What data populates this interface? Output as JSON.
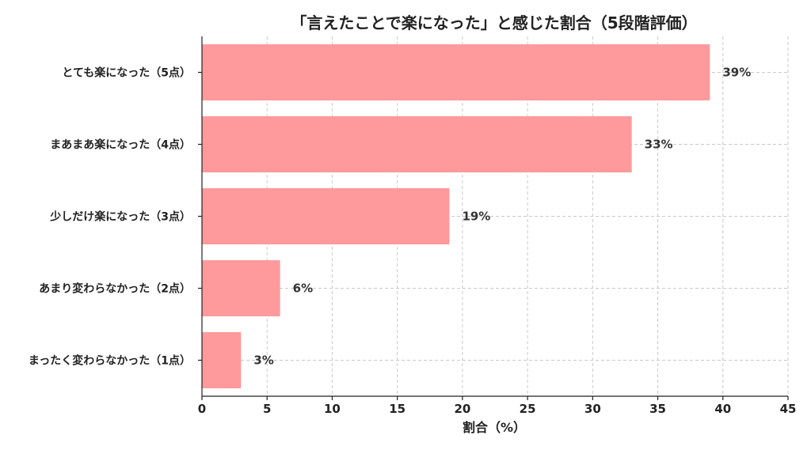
{
  "chart_data": {
    "type": "bar",
    "orientation": "horizontal",
    "title": "「言えたことで楽になった」と感じた割合（5段階評価）",
    "xlabel": "割合（%）",
    "ylabel": "",
    "xlim": [
      0,
      45
    ],
    "xticks": [
      "0",
      "5",
      "10",
      "15",
      "20",
      "25",
      "30",
      "35",
      "40",
      "45"
    ],
    "categories": [
      "とても楽になった（5点）",
      "まあまあ楽になった（4点）",
      "少しだけ楽になった（3点）",
      "あまり変わらなかった（2点）",
      "まったく変わらなかった（1点）"
    ],
    "values": [
      39,
      33,
      19,
      6,
      3
    ],
    "data_labels": [
      "39%",
      "33%",
      "19%",
      "6%",
      "3%"
    ],
    "bar_color": "#ff9a9c",
    "grid": true
  }
}
